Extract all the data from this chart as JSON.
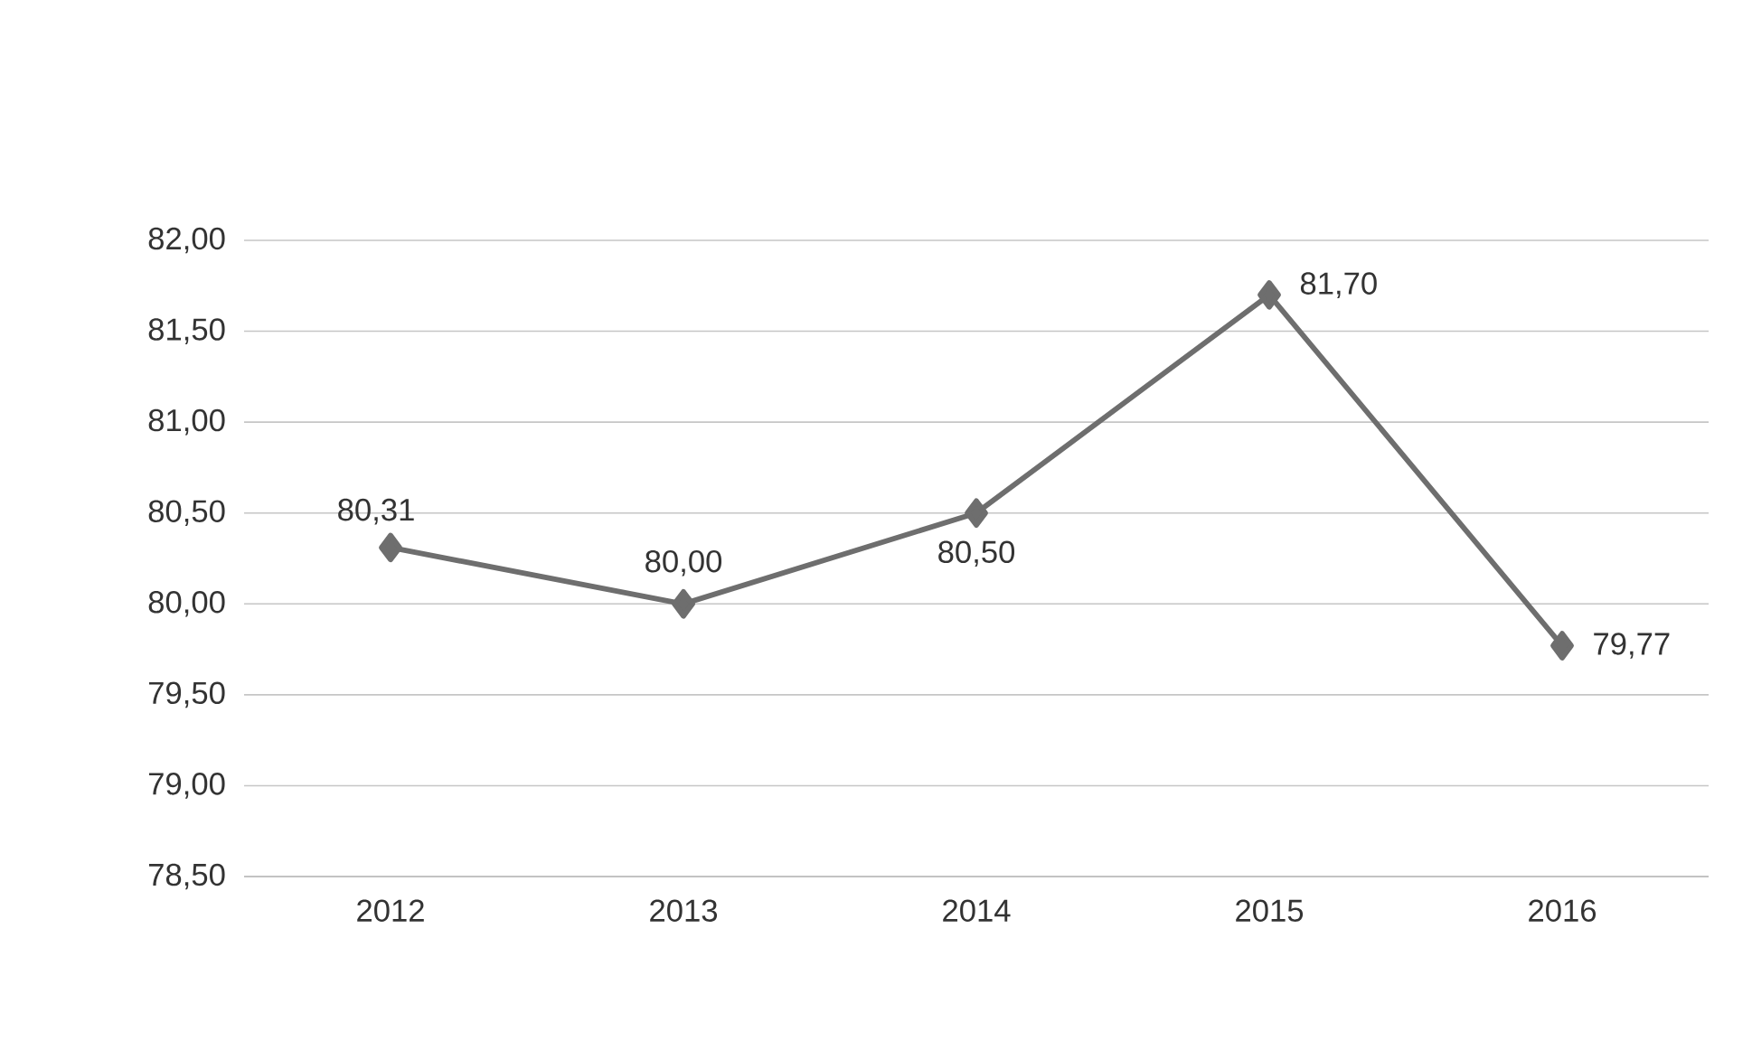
{
  "chart_data": {
    "type": "line",
    "categories": [
      "2012",
      "2013",
      "2014",
      "2015",
      "2016"
    ],
    "series": [
      {
        "color": "#6e6e6e",
        "values": [
          80.31,
          80.0,
          80.5,
          81.7,
          79.77
        ],
        "value_labels": [
          "80,31",
          "80,00",
          "80,50",
          "81,70",
          "79,77"
        ]
      }
    ],
    "ylim": [
      78.5,
      82.0
    ],
    "yticks": [
      {
        "value": 78.5,
        "label": "78,50"
      },
      {
        "value": 79.0,
        "label": "79,00"
      },
      {
        "value": 79.5,
        "label": "79,50"
      },
      {
        "value": 80.0,
        "label": "80,00"
      },
      {
        "value": 80.5,
        "label": "80,50"
      },
      {
        "value": 81.0,
        "label": "81,00"
      },
      {
        "value": 81.5,
        "label": "81,50"
      },
      {
        "value": 82.0,
        "label": "82,00"
      }
    ],
    "grid": "y",
    "marker": "diamond",
    "line_style": "solid"
  }
}
